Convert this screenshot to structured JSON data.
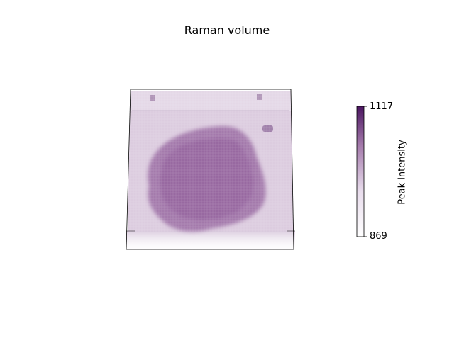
{
  "chart_data": {
    "type": "heatmap",
    "subtype": "3d-voxel-volume",
    "title": "Raman volume",
    "colorbar": {
      "label": "Peak intensity",
      "min": 869,
      "max": 1117,
      "colormap": "white-to-purple",
      "color_low": "#ffffff",
      "color_high": "#4b1561"
    },
    "volume": {
      "background_level": 930,
      "feature_level": 1000,
      "feature_shape": "irregular blob"
    },
    "axes_visible": false,
    "grid": false
  }
}
